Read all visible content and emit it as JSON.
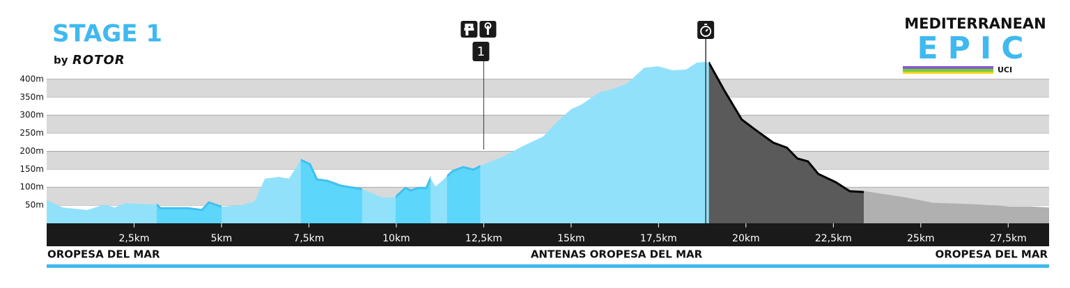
{
  "chart_data": {
    "type": "area",
    "title": "STAGE 1",
    "subtitle": "by",
    "sponsor": "ROTOR",
    "logo": {
      "top": "MEDITERRANEAN",
      "word": "EPIC",
      "badge": "UCI"
    },
    "color": "#92e1fb",
    "x": [
      0,
      0.46,
      1.16,
      1.65,
      1.95,
      2.25,
      3.15,
      3.25,
      4.04,
      4.44,
      4.64,
      5.0,
      5.54,
      5.94,
      6.24,
      6.63,
      6.93,
      7.27,
      7.53,
      7.73,
      8.03,
      8.43,
      9.02,
      9.62,
      9.98,
      10.26,
      10.42,
      10.62,
      10.86,
      10.98,
      11.12,
      11.31,
      11.61,
      11.91,
      12.21,
      12.51,
      13.01,
      13.61,
      14.2,
      14.6,
      15.0,
      15.3,
      15.8,
      16.2,
      16.6,
      17.09,
      17.49,
      17.89,
      18.29,
      18.59,
      18.82,
      18.94,
      19.38,
      19.88,
      20.28,
      20.78,
      21.17,
      21.47,
      21.77,
      22.07,
      22.57,
      22.97,
      23.37,
      23.76,
      24.56,
      25.36,
      26.55,
      27.55,
      28.15,
      28.67
    ],
    "values": [
      64,
      44,
      37,
      52,
      44,
      56,
      52,
      42,
      42,
      37,
      58,
      46,
      50,
      60,
      124,
      129,
      124,
      176,
      164,
      122,
      118,
      104,
      95,
      71,
      73,
      98,
      91,
      98,
      98,
      125,
      102,
      118,
      145,
      156,
      149,
      164,
      183,
      214,
      241,
      282,
      317,
      330,
      363,
      373,
      388,
      432,
      436,
      425,
      427,
      446,
      448,
      446,
      369,
      288,
      259,
      224,
      210,
      180,
      172,
      137,
      114,
      89,
      87,
      81,
      69,
      54,
      50,
      44,
      44,
      41
    ],
    "zones": [
      {
        "range": [
          3.15,
          5.0
        ],
        "color": "#5cd6fb",
        "stroke": "#3fc0f0"
      },
      {
        "range": [
          7.27,
          9.02
        ],
        "color": "#5cd6fb",
        "stroke": "#3fc0f0"
      },
      {
        "range": [
          9.98,
          10.98
        ],
        "color": "#5cd6fb",
        "stroke": "#3fc0f0"
      },
      {
        "range": [
          11.45,
          12.4
        ],
        "color": "#5cd6fb",
        "stroke": "#3fc0f0"
      },
      {
        "range": [
          18.94,
          23.37
        ],
        "color": "#5a5a5a",
        "stroke": "#000000"
      },
      {
        "range": [
          23.37,
          28.67
        ],
        "color": "#b0b0b0",
        "stroke": "#b0b0b0"
      }
    ],
    "markers": [
      {
        "x": 12.5,
        "label": "1"
      },
      {
        "x": 18.85
      }
    ],
    "xlim": [
      0,
      28.67
    ],
    "ylim": [
      0,
      450
    ],
    "xticks": [
      {
        "value": 2.5,
        "label": "2,5km"
      },
      {
        "value": 5,
        "label": "5km"
      },
      {
        "value": 7.5,
        "label": "7,5km"
      },
      {
        "value": 10,
        "label": "10km"
      },
      {
        "value": 12.5,
        "label": "12,5km"
      },
      {
        "value": 15,
        "label": "15km"
      },
      {
        "value": 17.5,
        "label": "17,5km"
      },
      {
        "value": 20,
        "label": "20km"
      },
      {
        "value": 22.5,
        "label": "22,5km"
      },
      {
        "value": 25,
        "label": "25km"
      },
      {
        "value": 27.5,
        "label": "27,5km"
      }
    ],
    "yticks": [
      {
        "value": 50,
        "label": "50m"
      },
      {
        "value": 100,
        "label": "100m"
      },
      {
        "value": 150,
        "label": "150m"
      },
      {
        "value": 200,
        "label": "200m"
      },
      {
        "value": 250,
        "label": "250m"
      },
      {
        "value": 300,
        "label": "300m"
      },
      {
        "value": 350,
        "label": "350m"
      },
      {
        "value": 400,
        "label": "400m"
      }
    ],
    "grid": true,
    "places": [
      "OROPESA DEL MAR",
      "ANTENAS OROPESA DEL MAR",
      "OROPESA DEL MAR"
    ]
  }
}
